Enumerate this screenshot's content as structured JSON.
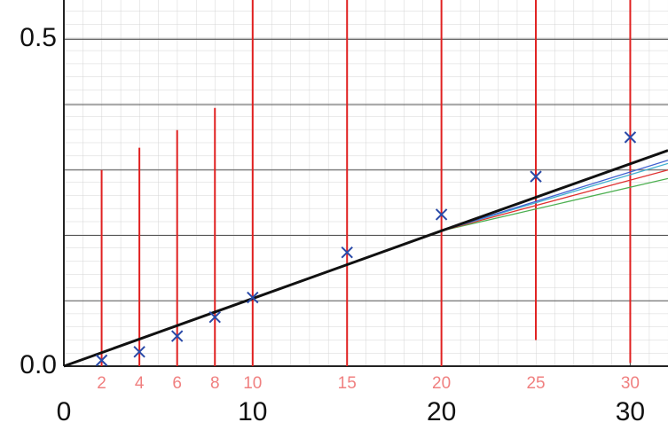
{
  "chart_data": {
    "type": "scatter",
    "xlim": [
      0,
      32
    ],
    "ylim": [
      0,
      0.56
    ],
    "xticks": [
      0,
      10,
      20,
      30
    ],
    "yticks": [
      {
        "value": 0,
        "label": "0.0"
      },
      0.5
    ],
    "ygrid": [
      0.1,
      0.2,
      0.3,
      0.4
    ],
    "grid": true,
    "points": {
      "color": "#2a4aa8",
      "x": [
        2,
        4,
        6,
        8,
        10,
        15,
        20,
        25,
        30
      ],
      "values": [
        0.009,
        0.022,
        0.046,
        0.075,
        0.105,
        0.174,
        0.232,
        0.29,
        0.35
      ]
    },
    "markers": {
      "color": "#e02020",
      "x": [
        2,
        4,
        6,
        8,
        10,
        15,
        20,
        25,
        30
      ],
      "low": [
        0,
        0,
        0,
        0,
        0,
        0,
        0,
        0.04,
        0.005
      ],
      "high": [
        0.3,
        0.334,
        0.361,
        0.395,
        0.56,
        0.56,
        0.56,
        0.56,
        0.56
      ]
    },
    "lines": [
      {
        "color": "#4caf50",
        "x": [
          0,
          20,
          32
        ],
        "values": [
          0,
          0.207,
          0.287
        ]
      },
      {
        "color": "#e03030",
        "x": [
          0,
          20,
          32
        ],
        "values": [
          0,
          0.207,
          0.3
        ]
      },
      {
        "color": "#40b0d0",
        "x": [
          0,
          20,
          32
        ],
        "values": [
          0,
          0.207,
          0.31
        ]
      },
      {
        "color": "#4060d0",
        "x": [
          0,
          20,
          32
        ],
        "values": [
          0,
          0.207,
          0.315
        ]
      },
      {
        "color": "#111111",
        "x": [
          0,
          20,
          32
        ],
        "values": [
          0,
          0.207,
          0.33
        ]
      }
    ]
  }
}
